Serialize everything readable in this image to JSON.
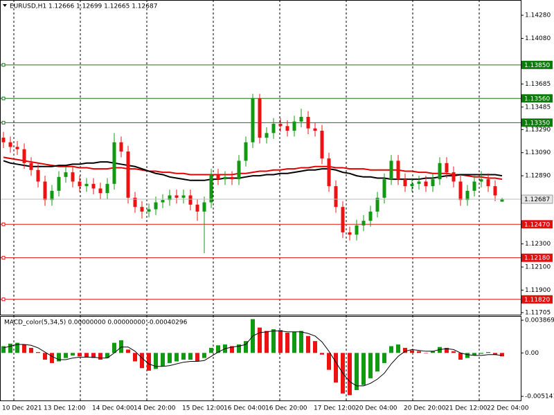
{
  "chart_data": [
    {
      "type": "candlestick",
      "title": "EURUSD,H1  1.12666 1.12699 1.12665 1.12687",
      "categories": [
        "10 Dec 2021",
        null,
        null,
        null,
        null,
        null,
        "13 Dec 12:00",
        null,
        null,
        null,
        null,
        null,
        null,
        "14 Dec 04:00",
        null,
        null,
        null,
        null,
        null,
        "14 Dec 20:00",
        null,
        null,
        null,
        null,
        null,
        null,
        "15 Dec 12:00",
        null,
        null,
        null,
        null,
        null,
        "16 Dec 04:00",
        null,
        null,
        null,
        null,
        null,
        "16 Dec 20:00",
        null,
        null,
        null,
        null,
        null,
        null,
        "17 Dec 12:00",
        null,
        null,
        null,
        null,
        null,
        "20 Dec 04:00",
        null,
        null,
        null,
        null,
        null,
        null,
        "20 Dec 20:00",
        null,
        null,
        null,
        null,
        null,
        "21 Dec 12:00",
        null,
        null,
        null,
        null,
        null,
        "22 Dec 04:00",
        null,
        null
      ],
      "open": [
        1.1322,
        1.1318,
        1.1314,
        1.1312,
        1.13,
        1.1294,
        1.1284,
        1.1268,
        1.1276,
        1.1288,
        1.1292,
        1.1284,
        1.128,
        1.1282,
        1.1278,
        1.1274,
        1.1282,
        1.1318,
        1.131,
        1.127,
        1.1262,
        1.1258,
        1.126,
        1.1266,
        1.1268,
        1.1272,
        1.127,
        1.1272,
        1.1264,
        1.1258,
        1.1266,
        1.129,
        1.1286,
        1.1288,
        1.1286,
        1.1302,
        1.1318,
        1.1356,
        1.1322,
        1.1326,
        1.1334,
        1.1332,
        1.1328,
        1.1336,
        1.134,
        1.133,
        1.1328,
        1.1304,
        1.128,
        1.1262,
        1.124,
        1.1238,
        1.1246,
        1.125,
        1.1258,
        1.127,
        1.1286,
        1.1302,
        1.1286,
        1.128,
        1.1282,
        1.1284,
        1.128,
        1.1286,
        1.13,
        1.1292,
        1.1284,
        1.1268,
        1.1276,
        1.1284,
        1.1286,
        1.128,
        1.12666
      ],
      "high": [
        1.1327,
        1.1323,
        1.1319,
        1.1317,
        1.1305,
        1.1299,
        1.1289,
        1.1281,
        1.1293,
        1.1297,
        1.1297,
        1.1289,
        1.1287,
        1.1287,
        1.1283,
        1.1287,
        1.1326,
        1.1323,
        1.1315,
        1.1275,
        1.1267,
        1.1265,
        1.1271,
        1.1273,
        1.1277,
        1.1277,
        1.1277,
        1.1277,
        1.1269,
        1.1271,
        1.1295,
        1.1295,
        1.1293,
        1.1293,
        1.1307,
        1.1323,
        1.136,
        1.136,
        1.1331,
        1.1339,
        1.1339,
        1.1337,
        1.1341,
        1.1347,
        1.1345,
        1.1335,
        1.1333,
        1.1309,
        1.1285,
        1.1267,
        1.1245,
        1.1251,
        1.1255,
        1.1263,
        1.1275,
        1.1291,
        1.1307,
        1.1307,
        1.1291,
        1.1287,
        1.1289,
        1.1289,
        1.1291,
        1.1305,
        1.1305,
        1.1297,
        1.1289,
        1.1281,
        1.1289,
        1.1293,
        1.1291,
        1.1285,
        1.12699
      ],
      "low": [
        1.1313,
        1.1309,
        1.1307,
        1.1295,
        1.1289,
        1.1279,
        1.1263,
        1.1263,
        1.1271,
        1.1283,
        1.1279,
        1.1275,
        1.1275,
        1.1273,
        1.1269,
        1.1269,
        1.1277,
        1.1305,
        1.1265,
        1.1257,
        1.1252,
        1.1253,
        1.1255,
        1.1261,
        1.1263,
        1.1265,
        1.1265,
        1.1259,
        1.125,
        1.1222,
        1.1261,
        1.1281,
        1.1281,
        1.1281,
        1.1281,
        1.1297,
        1.1313,
        1.1317,
        1.1317,
        1.1321,
        1.1327,
        1.1323,
        1.1323,
        1.1331,
        1.1325,
        1.1323,
        1.1299,
        1.1275,
        1.1257,
        1.1235,
        1.1233,
        1.1233,
        1.1241,
        1.1245,
        1.1253,
        1.1265,
        1.1281,
        1.1281,
        1.1275,
        1.1275,
        1.1277,
        1.1275,
        1.1275,
        1.1281,
        1.1287,
        1.1279,
        1.1263,
        1.1263,
        1.1271,
        1.1279,
        1.1275,
        1.1267,
        1.12665
      ],
      "close": [
        1.1318,
        1.1314,
        1.1312,
        1.13,
        1.1294,
        1.1284,
        1.1268,
        1.1276,
        1.1288,
        1.1292,
        1.1284,
        1.128,
        1.1282,
        1.1278,
        1.1274,
        1.1282,
        1.1318,
        1.131,
        1.127,
        1.1262,
        1.1258,
        1.126,
        1.1266,
        1.1268,
        1.1272,
        1.127,
        1.1272,
        1.1264,
        1.1258,
        1.1266,
        1.129,
        1.1286,
        1.1288,
        1.1286,
        1.1302,
        1.1318,
        1.1356,
        1.1322,
        1.1326,
        1.1334,
        1.1332,
        1.1328,
        1.1336,
        1.134,
        1.133,
        1.1328,
        1.1304,
        1.128,
        1.1262,
        1.124,
        1.1238,
        1.1246,
        1.125,
        1.1258,
        1.127,
        1.1286,
        1.1302,
        1.1286,
        1.128,
        1.1282,
        1.1284,
        1.128,
        1.1286,
        1.13,
        1.1292,
        1.1284,
        1.1268,
        1.1276,
        1.1284,
        1.1286,
        1.128,
        1.1272,
        1.12687
      ],
      "up_color": "#119911",
      "down_color": "#ee1111",
      "series": [
        {
          "color": "#e00000",
          "values": [
            1.1305,
            1.1304,
            1.1303,
            1.1302,
            1.1301,
            1.13,
            1.1299,
            1.1298,
            1.1297,
            1.1297,
            1.1297,
            1.1296,
            1.1296,
            1.1295,
            1.1295,
            1.1295,
            1.1296,
            1.1296,
            1.1295,
            1.1295,
            1.1294,
            1.1293,
            1.1293,
            1.1292,
            1.1292,
            1.1291,
            1.1291,
            1.129,
            1.129,
            1.129,
            1.129,
            1.129,
            1.129,
            1.129,
            1.1291,
            1.1291,
            1.1292,
            1.1293,
            1.1293,
            1.1294,
            1.1294,
            1.1295,
            1.1295,
            1.1296,
            1.1296,
            1.1297,
            1.1297,
            1.1297,
            1.1296,
            1.1296,
            1.1295,
            1.1295,
            1.1295,
            1.1294,
            1.1294,
            1.1294,
            1.1294,
            1.1294,
            1.1293,
            1.1293,
            1.1292,
            1.1292,
            1.1291,
            1.1291,
            1.1291,
            1.129,
            1.129,
            1.1289,
            1.1288,
            1.1288,
            1.1287,
            1.1287,
            1.1286
          ]
        },
        {
          "color": "#000000",
          "values": [
            1.1302,
            1.13,
            1.1299,
            1.1298,
            1.1297,
            1.1297,
            1.1297,
            1.1297,
            1.1298,
            1.1298,
            1.1299,
            1.1299,
            1.13,
            1.13,
            1.1301,
            1.1301,
            1.13,
            1.1299,
            1.1298,
            1.1297,
            1.1295,
            1.1293,
            1.1291,
            1.129,
            1.1288,
            1.1287,
            1.1286,
            1.1285,
            1.1285,
            1.1285,
            1.1286,
            1.1286,
            1.1287,
            1.1287,
            1.1287,
            1.1288,
            1.1289,
            1.1289,
            1.129,
            1.129,
            1.1291,
            1.1291,
            1.1292,
            1.1293,
            1.1294,
            1.1294,
            1.1295,
            1.1295,
            1.1294,
            1.1292,
            1.1291,
            1.1289,
            1.1288,
            1.1288,
            1.1287,
            1.1287,
            1.1286,
            1.1286,
            1.1286,
            1.1286,
            1.1286,
            1.1287,
            1.1287,
            1.1288,
            1.1289,
            1.1289,
            1.129,
            1.129,
            1.129,
            1.129,
            1.129,
            1.129,
            1.1289
          ]
        }
      ],
      "ylim": [
        1.11687,
        1.14412
      ],
      "yticks": [
        {
          "value": 1.1428,
          "label": "1.14280"
        },
        {
          "value": 1.1408,
          "label": "1.14080"
        },
        {
          "value": 1.13685,
          "label": "1.13685"
        },
        {
          "value": 1.13485,
          "label": "1.13485"
        },
        {
          "value": 1.1329,
          "label": "1.13290"
        },
        {
          "value": 1.1309,
          "label": "1.13090"
        },
        {
          "value": 1.1289,
          "label": "1.12890"
        },
        {
          "value": 1.123,
          "label": "1.12300"
        },
        {
          "value": 1.121,
          "label": "1.12100"
        },
        {
          "value": 1.119,
          "label": "1.11900"
        },
        {
          "value": 1.11705,
          "label": "1.11705"
        }
      ],
      "levels": [
        {
          "value": 1.1385,
          "label": "1.13850",
          "color": "#0b7a0b"
        },
        {
          "value": 1.1356,
          "label": "1.13560",
          "color": "#0b7a0b"
        },
        {
          "value": 1.1335,
          "label": "1.13350",
          "color": "#0b7a0b"
        },
        {
          "value": 1.1247,
          "label": "1.12470",
          "color": "#e01010"
        },
        {
          "value": 1.1218,
          "label": "1.12180",
          "color": "#e01010"
        },
        {
          "value": 1.1182,
          "label": "1.11820",
          "color": "#e01010"
        }
      ],
      "grid": true
    },
    {
      "type": "bar",
      "title": "MACD_color(5,34,5) 0.00000000 0.00000000 -0.00040296",
      "values": [
        0.0008,
        0.0011,
        0.0012,
        0.001,
        0.0006,
        0.0001,
        -0.0008,
        -0.0012,
        -0.001,
        -0.0006,
        -0.0003,
        -0.0004,
        -0.0005,
        -0.0006,
        -0.0008,
        -0.0006,
        0.0012,
        0.0015,
        0.0004,
        -0.001,
        -0.0018,
        -0.0021,
        -0.0019,
        -0.0016,
        -0.0012,
        -0.001,
        -0.0008,
        -0.0008,
        -0.001,
        -0.0006,
        0.0006,
        0.0009,
        0.001,
        0.0008,
        0.001,
        0.0014,
        0.004,
        0.003,
        0.0026,
        0.0028,
        0.0027,
        0.0024,
        0.0025,
        0.0026,
        0.002,
        0.0014,
        -0.0002,
        -0.002,
        -0.0035,
        -0.0048,
        -0.005,
        -0.0044,
        -0.0038,
        -0.003,
        -0.0022,
        -0.0012,
        0.0008,
        0.001,
        0.0006,
        0.0003,
        0.0002,
        0.0,
        0.0002,
        0.0007,
        0.0006,
        0.0002,
        -0.0008,
        -0.0006,
        -0.0003,
        -0.0001,
        0.0001,
        -0.0002,
        -0.00040296
      ],
      "up_color": "#119911",
      "down_color": "#ee1111",
      "series": [
        {
          "color": "#000000",
          "values": [
            0.0006,
            0.0008,
            0.001,
            0.001,
            0.0009,
            0.0006,
            0.0001,
            -0.0004,
            -0.0008,
            -0.0008,
            -0.0006,
            -0.0005,
            -0.0005,
            -0.0005,
            -0.0006,
            -0.0006,
            0.0,
            0.0007,
            0.0007,
            0.0002,
            -0.0006,
            -0.0013,
            -0.0016,
            -0.0016,
            -0.0015,
            -0.0013,
            -0.0011,
            -0.001,
            -0.001,
            -0.0009,
            -0.0004,
            0.0001,
            0.0005,
            0.0007,
            0.0008,
            0.001,
            0.002,
            0.0024,
            0.0025,
            0.0026,
            0.0026,
            0.0025,
            0.0025,
            0.0025,
            0.0023,
            0.002,
            0.0013,
            0.0002,
            -0.0011,
            -0.0024,
            -0.0034,
            -0.0039,
            -0.0039,
            -0.0036,
            -0.0031,
            -0.0024,
            -0.0013,
            -0.0004,
            0.0002,
            0.0004,
            0.0003,
            0.0002,
            0.0002,
            0.0004,
            0.0005,
            0.0004,
            0.0,
            -0.0002,
            -0.0003,
            -0.0003,
            -0.0002,
            -0.0002,
            -0.0003
          ]
        }
      ],
      "ylim": [
        -0.00571,
        0.00436
      ],
      "yticks": [
        0.0038699,
        {
          "value": 0,
          "label": "0.00"
        },
        -0.005141
      ]
    }
  ]
}
